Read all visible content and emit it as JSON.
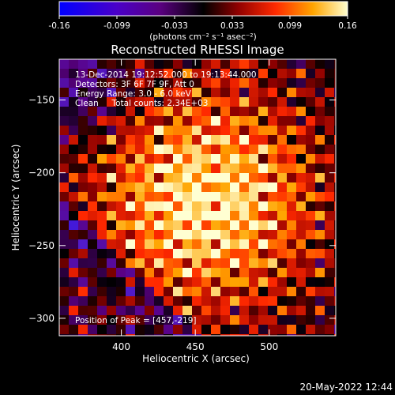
{
  "colorbar": {
    "ticks": [
      "-0.16",
      "-0.099",
      "-0.033",
      "0.033",
      "0.099",
      "0.16"
    ],
    "unit_label": "(photons cm⁻² s⁻¹ asec⁻²)",
    "min": -0.16,
    "max": 0.16
  },
  "chart_data": {
    "type": "heatmap",
    "title": "Reconstructed RHESSI Image",
    "xlabel": "Heliocentric X (arcsec)",
    "ylabel": "Heliocentric Y (arcsec)",
    "xlim": [
      358,
      545
    ],
    "ylim": [
      -312,
      -122
    ],
    "xticks": [
      400,
      450,
      500
    ],
    "yticks": [
      -150,
      -200,
      -250,
      -300
    ],
    "peak": [
      457,
      -219
    ],
    "colormap": "hot-with-blue-negative",
    "annotations": [
      "13-Dec-2014 19:12:52.000 to 19:13:44.000",
      "Detectors: 3F 6F 7F 9F, Att 0",
      "Energy Range: 3.0 - 6.0 keV",
      "Clean     Total counts: 2.34E+03",
      "Position of Peak = [457,-219]"
    ]
  },
  "footer": {
    "timestamp": "20-May-2022 12:44"
  }
}
